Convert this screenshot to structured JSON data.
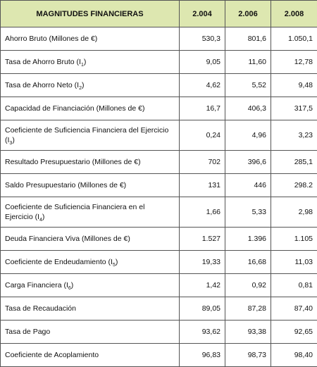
{
  "table": {
    "header": {
      "label": "MAGNITUDES FINANCIERAS",
      "years": [
        "2.004",
        "2.006",
        "2.008"
      ]
    },
    "rows": [
      {
        "label": "Ahorro Bruto (Millones de €)",
        "sub": "",
        "suffix": "",
        "values": [
          "530,3",
          "801,6",
          "1.050,1"
        ],
        "tall": false
      },
      {
        "label": "Tasa de Ahorro Bruto (I",
        "sub": "1",
        "suffix": ")",
        "values": [
          "9,05",
          "11,60",
          "12,78"
        ],
        "tall": false
      },
      {
        "label": "Tasa de Ahorro Neto (I",
        "sub": "2",
        "suffix": ")",
        "values": [
          "4,62",
          "5,52",
          "9,48"
        ],
        "tall": false
      },
      {
        "label": "Capacidad de Financiación (Millones de €)",
        "sub": "",
        "suffix": "",
        "values": [
          "16,7",
          "406,3",
          "317,5"
        ],
        "tall": false
      },
      {
        "label": "Coeficiente de Suficiencia Financiera del Ejercicio (I",
        "sub": "3",
        "suffix": ")",
        "values": [
          "0,24",
          "4,96",
          "3,23"
        ],
        "tall": true
      },
      {
        "label": "Resultado Presupuestario (Millones de €)",
        "sub": "",
        "suffix": "",
        "values": [
          "702",
          "396,6",
          "285,1"
        ],
        "tall": false
      },
      {
        "label": "Saldo Presupuestario (Millones de €)",
        "sub": "",
        "suffix": "",
        "values": [
          "131",
          "446",
          "298.2"
        ],
        "tall": false
      },
      {
        "label": "Coeficiente de Suficiencia Financiera en el Ejercicio (I",
        "sub": "4",
        "suffix": ")",
        "values": [
          "1,66",
          "5,33",
          "2,98"
        ],
        "tall": true
      },
      {
        "label": "Deuda Financiera Viva (Millones de €)",
        "sub": "",
        "suffix": "",
        "values": [
          "1.527",
          "1.396",
          "1.105"
        ],
        "tall": false
      },
      {
        "label": "Coeficiente de Endeudamiento (I",
        "sub": "5",
        "suffix": ")",
        "values": [
          "19,33",
          "16,68",
          "11,03"
        ],
        "tall": false
      },
      {
        "label": "Carga Financiera (I",
        "sub": "6",
        "suffix": ")",
        "values": [
          "1,42",
          "0,92",
          "0,81"
        ],
        "tall": false
      },
      {
        "label": "Tasa de Recaudación",
        "sub": "",
        "suffix": "",
        "values": [
          "89,05",
          "87,28",
          "87,40"
        ],
        "tall": false
      },
      {
        "label": "Tasa de Pago",
        "sub": "",
        "suffix": "",
        "values": [
          "93,62",
          "93,38",
          "92,65"
        ],
        "tall": false
      },
      {
        "label": "Coeficiente de Acoplamiento",
        "sub": "",
        "suffix": "",
        "values": [
          "96,83",
          "98,73",
          "98,40"
        ],
        "tall": false
      }
    ]
  }
}
